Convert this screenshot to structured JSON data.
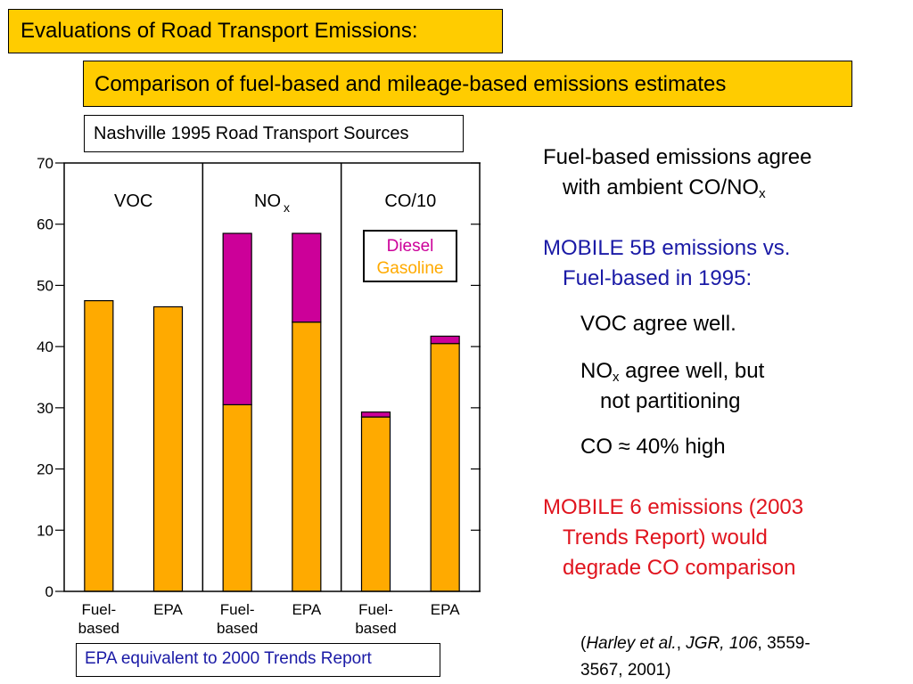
{
  "header": {
    "title": "Evaluations of Road Transport Emissions:",
    "subtitle": "Comparison of fuel-based and mileage-based emissions estimates"
  },
  "chart_data": {
    "type": "bar",
    "stacked": true,
    "title": "Nashville 1995 Road Transport Sources",
    "ylim": [
      0,
      70
    ],
    "yticks": [
      0,
      10,
      20,
      30,
      40,
      50,
      60,
      70
    ],
    "panels": [
      {
        "label": "VOC",
        "label_sub": ""
      },
      {
        "label": "NO",
        "label_sub": "x"
      },
      {
        "label": "CO/10",
        "label_sub": ""
      }
    ],
    "categories": [
      "Fuel-based",
      "EPA",
      "Fuel-based",
      "EPA",
      "Fuel-based",
      "EPA"
    ],
    "category_lines": [
      [
        "Fuel-",
        "based"
      ],
      [
        "EPA",
        ""
      ],
      [
        "Fuel-",
        "based"
      ],
      [
        "EPA",
        ""
      ],
      [
        "Fuel-",
        "based"
      ],
      [
        "EPA",
        ""
      ]
    ],
    "series": [
      {
        "name": "Gasoline",
        "color": "#ffaa00",
        "values": [
          47.5,
          46.5,
          30.5,
          44,
          28.5,
          40.5
        ]
      },
      {
        "name": "Diesel",
        "color": "#cc0099",
        "values": [
          0,
          0,
          28,
          14.5,
          0.8,
          1.2
        ]
      }
    ],
    "legend_position": "inside-top-right",
    "footnote": "EPA equivalent to 2000 Trends Report"
  },
  "right_panel": {
    "p1_line1": "Fuel-based emissions agree",
    "p1_line2": "with ambient CO/NO",
    "p1_line2_sub": "x",
    "p2_line1": "MOBILE 5B emissions vs.",
    "p2_line2": "Fuel-based in 1995:",
    "item_voc": "VOC agree well.",
    "item_nox_prefix": "NO",
    "item_nox_sub": "x",
    "item_nox_rest": " agree well, but",
    "item_nox_line2": "not partitioning",
    "item_co": "CO ≈ 40% high",
    "p3_line1": "MOBILE 6 emissions (2003",
    "p3_line2": "Trends Report) would",
    "p3_line3": "degrade CO comparison",
    "citation_open": "(",
    "citation_authors": "Harley et al.",
    "citation_sep1": ", ",
    "citation_journal": "JGR, 106",
    "citation_pages": ", 3559-",
    "citation_line2": "3567, 2001)"
  },
  "colors": {
    "title_bg": "#ffcc00",
    "navy_text": "#1a1aa6",
    "red_text": "#e0141e"
  }
}
